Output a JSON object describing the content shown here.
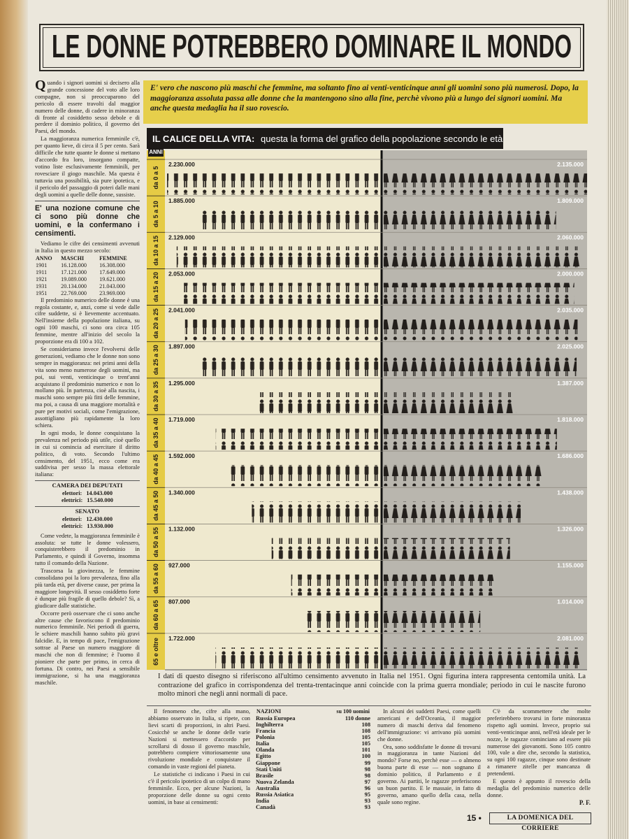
{
  "header": {
    "title": "LE DONNE POTREBBERO DOMINARE IL MONDO"
  },
  "callout": "E' vero che nascono più maschi che femmine, ma soltanto fino ai venti-venticinque anni gli uomini sono più numerosi. Dopo, la maggioranza assoluta passa alle donne che la mantengono sino alla fine, perchè vivono più a lungo dei signori uomini. Ma anche questa medaglia ha il suo rovescio.",
  "intro": {
    "paragraphs": [
      "Quando i signori uomini si decisero alla grande concessione del voto alle loro compagne, non si preoccuparono del pericolo di essere travolti dal maggior numero delle donne, di cadere in minoranza di fronte al cosiddetto sesso debole e di perdere il dominio politico, il governo dei Paesi, del mondo.",
      "La maggioranza numerica femminile c'è, per quanto lieve, di circa il 5 per cento. Sarà difficile che tutte quante le donne si mettano d'accordo fra loro, insorgano compatte, votino liste esclusivamente femminili, per rovesciare il giogo maschile. Ma questa è tuttavia una possibilità, sia pure ipotetica, e il pericolo del passaggio di poteri dalle mani degli uomini a quelle delle donne, sussiste."
    ],
    "highlight": "E' una nozione comune che ci sono più donne che uomini, e la confermano i censimenti.",
    "lead": "Vediamo le cifre dei censimenti avvenuti in Italia in questo mezzo secolo:",
    "census": {
      "columns": [
        "ANNO",
        "MASCHI",
        "FEMMINE"
      ],
      "rows": [
        [
          "1901",
          "16.128.000",
          "16.308.000"
        ],
        [
          "1911",
          "17.121.000",
          "17.649.000"
        ],
        [
          "1921",
          "19.089.000",
          "19.621.000"
        ],
        [
          "1931",
          "20.134.000",
          "21.043.000"
        ],
        [
          "1951",
          "22.769.000",
          "23.969.000"
        ]
      ]
    },
    "middle": [
      "Il predominio numerico delle donne è una regola costante, e, anzi, come si vede dalle cifre suddette, si è lievemente accentuato. Nell'insieme della popolazione italiana, su ogni 100 maschi, ci sono ora circa 105 femmine, mentre all'inizio del secolo la proporzione era di 100 a 102.",
      "Se consideriamo invece l'evolversi delle generazioni, vediamo che le donne non sono sempre in maggioranza: nei primi anni della vita sono meno numerose degli uomini, ma poi, sui venti, venticinque o trent'anni acquistano il predominio numerico e non lo mollano più. In partenza, cioè alla nascita, i maschi sono sempre più fitti delle femmine, ma poi, a causa di una maggiore mortalità e pure per motivi sociali, come l'emigrazione, assottigliano più rapidamente la loro schiera.",
      "In ogni modo, le donne conquistano la prevalenza nel periodo più utile, cioè quello in cui si comincia ad esercitare il diritto politico, di voto. Secondo l'ultimo censimento, del 1951, ecco come era suddivisa per sesso la massa elettorale italiana:"
    ],
    "elections": [
      {
        "title": "CAMERA DEI DEPUTATI",
        "rows": [
          [
            "elettori:",
            "14.043.000"
          ],
          [
            "elettrici:",
            "15.540.000"
          ]
        ]
      },
      {
        "title": "SENATO",
        "rows": [
          [
            "elettori:",
            "12.430.000"
          ],
          [
            "elettrici:",
            "13.930.000"
          ]
        ]
      }
    ],
    "closing": [
      "Come vedete, la maggioranza femminile è assoluta: se tutte le donne volessero, conquisterebbero il predominio in Parlamento, e quindi il Governo, insomma tutto il comando della Nazione.",
      "Trascorsa la giovinezza, le femmine consolidano poi la loro prevalenza, fino alla più tarda età, per diverse cause, per prima la maggiore longevità. Il sesso cosiddetto forte è dunque più fragile di quello debole? Sì, a giudicare dalle statistiche.",
      "Occorre però osservare che ci sono anche altre cause che favoriscono il predominio numerico femminile. Nei periodi di guerra, le schiere maschili hanno subito più gravi falcidie. E, in tempo di pace, l'emigrazione sottrae al Paese un numero maggiore di maschi che non di femmine; è l'uomo il pioniere che parte per primo, in cerca di fortuna. Di contro, nei Paesi a sensibile immigrazione, si ha una maggioranza maschile."
    ]
  },
  "chart_data": {
    "type": "pyramid",
    "title": "IL CALICE DELLA VITA:",
    "subtitle": "questa la forma del grafico della popolazione secondo le età",
    "axis_label": "ANNI",
    "categories": [
      "da 0 a 5",
      "da 5 a 10",
      "da 10 a 15",
      "da 15 a 20",
      "da 20 a 25",
      "da 25 a 30",
      "da 30 a 35",
      "da 35 a 40",
      "da 40 a 45",
      "da 45 a 50",
      "da 50 a 55",
      "da 55 a 60",
      "da 60 a 65",
      "65 e oltre"
    ],
    "series": [
      {
        "color": "#2a2520",
        "side": "left",
        "values": [
          2230000,
          1885000,
          2129000,
          2053000,
          2041000,
          1897000,
          1295000,
          1719000,
          1592000,
          1340000,
          1132000,
          927000,
          807000,
          1722000
        ],
        "value_labels": [
          "2.230.000",
          "1.885.000",
          "2.129.000",
          "2.053.000",
          "2.041.000",
          "1.897.000",
          "1.295.000",
          "1.719.000",
          "1.592.000",
          "1.340.000",
          "1.132.000",
          "927.000",
          "807.000",
          "1.722.000"
        ]
      },
      {
        "color": "#231f1c",
        "side": "right",
        "values": [
          2135000,
          1809000,
          2060000,
          2000000,
          2035000,
          2025000,
          1387000,
          1818000,
          1686000,
          1438000,
          1326000,
          1155000,
          1014000,
          2081000
        ],
        "value_labels": [
          "2.135.000",
          "1.809.000",
          "2.060.000",
          "2.000.000",
          "2.035.000",
          "2.025.000",
          "1.387.000",
          "1.818.000",
          "1.686.000",
          "1.438.000",
          "1.326.000",
          "1.155.000",
          "1.014.000",
          "2.081.000"
        ]
      }
    ],
    "figure_unit": 100000,
    "caption": "I dati di questo disegno si riferiscono all'ultimo censimento avvenuto in Italia nel 1951. Ogni figurina intera rappresenta centomila unità. La contrazione del grafico in corrispondenza del trenta-trentacinque anni coincide con la prima guerra mondiale; periodo in cui le nascite furono molto minori che negli anni normali di pace."
  },
  "bottom": {
    "column1": [
      "Il fenomeno che, cifre alla mano, abbiamo osservato in Italia, si ripete, con lievi scarti di proporzioni, in altri Paesi. Cosicchè se anche le donne delle varie Nazioni si mettessero d'accordo per scrollarsi di dosso il governo maschile, potrebbero compiere vittoriosamente una rivoluzione mondiale e conquistare il comando in vaste regioni del pianeta.",
      "Le statistiche ci indicano i Paesi in cui c'è il pericolo ipotetico di un colpo di mano femminile. Ecco, per alcune Nazioni, la proporzione delle donne su ogni cento uomini, in base ai censimenti:"
    ],
    "nations": {
      "columns": [
        "NAZIONI",
        "su 100 uomini"
      ],
      "rows": [
        [
          "Russia Europea",
          "110 donne"
        ],
        [
          "Inghilterra",
          "108"
        ],
        [
          "Francia",
          "108"
        ],
        [
          "Polonia",
          "105"
        ],
        [
          "Italia",
          "105"
        ],
        [
          "Olanda",
          "101"
        ],
        [
          "Egitto",
          "100"
        ],
        [
          "Giappone",
          "99"
        ],
        [
          "Stati Uniti",
          "98"
        ],
        [
          "Brasile",
          "98"
        ],
        [
          "Nuova Zelanda",
          "97"
        ],
        [
          "Australia",
          "96"
        ],
        [
          "Russia Asiatica",
          "95"
        ],
        [
          "India",
          "93"
        ],
        [
          "Canadà",
          "93"
        ]
      ]
    },
    "column3": [
      "In alcuni dei suddetti Paesi, come quelli americani e dell'Oceania, il maggior numero di maschi deriva dal fenomeno dell'immigrazione: vi arrivano più uomini che donne.",
      "Ora, sono soddisfatte le donne di trovarsi in maggioranza in tante Nazioni del mondo? Forse no, perchè esse — o almeno buona parte di esse — non sognano il dominio politico, il Parlamento e il governo. Ai partiti, le ragazze preferiscono un buon partito. E le massaie, in fatto di governo, amano quello della casa, nella quale sono regine."
    ],
    "column4": [
      "C'è da scommettere che molte preferirebbero trovarsi in forte minoranza rispetto agli uomini. Invece, proprio sui venti-venticinque anni, nell'età ideale per le nozze, le ragazze cominciano ad essere più numerose dei giovanotti. Sono 105 contro 100, vale a dire che, secondo la statistica, su ogni 100 ragazze, cinque sono destinate a rimanere zitelle per mancanza di pretendenti.",
      "E questo è appunto il rovescio della medaglia del predominio numerico delle donne."
    ],
    "signature": "P. F."
  },
  "footer": {
    "page": "15 •",
    "masthead": "LA DOMENICA DEL CORRIERE"
  }
}
